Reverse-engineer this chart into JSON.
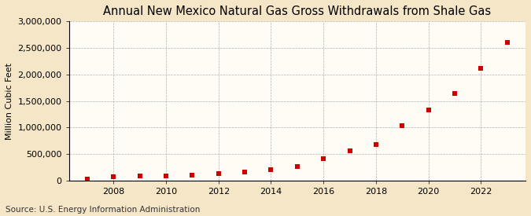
{
  "title": "Annual New Mexico Natural Gas Gross Withdrawals from Shale Gas",
  "ylabel": "Million Cubic Feet",
  "source": "Source: U.S. Energy Information Administration",
  "background_color": "#f5e6c8",
  "plot_background_color": "#fefcf5",
  "marker_color": "#cc0000",
  "years": [
    2007,
    2008,
    2009,
    2010,
    2011,
    2012,
    2013,
    2014,
    2015,
    2016,
    2017,
    2018,
    2019,
    2020,
    2021,
    2022,
    2023
  ],
  "values": [
    25000,
    65000,
    85000,
    85000,
    105000,
    135000,
    165000,
    200000,
    270000,
    415000,
    555000,
    685000,
    1035000,
    1325000,
    1645000,
    2120000,
    2600000
  ],
  "ylim": [
    0,
    3000000
  ],
  "yticks": [
    0,
    500000,
    1000000,
    1500000,
    2000000,
    2500000,
    3000000
  ],
  "xlim": [
    2006.3,
    2023.7
  ],
  "xticks": [
    2008,
    2010,
    2012,
    2014,
    2016,
    2018,
    2020,
    2022
  ],
  "title_fontsize": 10.5,
  "label_fontsize": 8,
  "tick_fontsize": 8,
  "source_fontsize": 7.5
}
